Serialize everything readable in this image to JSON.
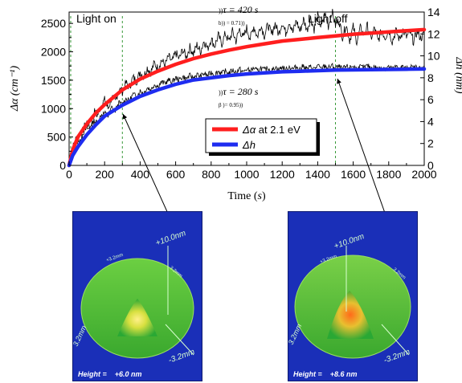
{
  "chart_data": {
    "type": "line",
    "xlabel_main": "Time",
    "xlabel_unit": "s",
    "ylabel_left": "Δα (cm⁻¹)",
    "ylabel_right": "Δh (nm)",
    "xlim": [
      0,
      2000
    ],
    "ylim_left": [
      0,
      2700
    ],
    "ylim_right": [
      0,
      14
    ],
    "x_ticks": [
      0,
      200,
      400,
      600,
      800,
      1000,
      1200,
      1400,
      1600,
      1800,
      2000
    ],
    "y_ticks_left": [
      0,
      500,
      1000,
      1500,
      2000,
      2500
    ],
    "y_ticks_right": [
      0,
      2,
      4,
      6,
      8,
      10,
      12,
      14
    ],
    "light_on_time": 0,
    "light_off_time": 1500,
    "mark_time": 300,
    "series": [
      {
        "name": "Δα at 2.1 eV",
        "axis": "left",
        "color": "#ff1e1e",
        "tau": 420,
        "beta": 0.71,
        "amplitude": 2600,
        "x": [
          0,
          20,
          50,
          100,
          150,
          200,
          300,
          400,
          500,
          600,
          700,
          800,
          900,
          1000,
          1100,
          1200,
          1300,
          1400,
          1500,
          1600,
          1700,
          1800,
          1900,
          2000
        ],
        "values": [
          0,
          270,
          500,
          730,
          920,
          1070,
          1330,
          1520,
          1660,
          1780,
          1880,
          1960,
          2030,
          2090,
          2140,
          2190,
          2220,
          2250,
          2280,
          2310,
          2330,
          2350,
          2370,
          2390
        ]
      },
      {
        "name": "Δh",
        "axis": "right",
        "color": "#1e2cf0",
        "tau": 280,
        "beta": 0.95,
        "amplitude": 8.8,
        "x": [
          0,
          20,
          50,
          100,
          150,
          200,
          300,
          400,
          500,
          600,
          700,
          800,
          900,
          1000,
          1100,
          1200,
          1300,
          1400,
          1500,
          1600,
          1700,
          1800,
          1900,
          2000
        ],
        "values": [
          0,
          0.9,
          1.7,
          2.8,
          3.7,
          4.5,
          5.5,
          6.3,
          6.9,
          7.4,
          7.8,
          8.0,
          8.2,
          8.35,
          8.45,
          8.55,
          8.6,
          8.65,
          8.7,
          8.72,
          8.74,
          8.76,
          8.78,
          8.8
        ]
      }
    ],
    "noisy_data": {
      "description_color": "#000000",
      "left_trace": [
        [
          0,
          60
        ],
        [
          20,
          300
        ],
        [
          40,
          480
        ],
        [
          60,
          420
        ],
        [
          80,
          640
        ],
        [
          100,
          760
        ],
        [
          120,
          680
        ],
        [
          140,
          950
        ],
        [
          160,
          880
        ],
        [
          180,
          1060
        ],
        [
          200,
          1150
        ],
        [
          220,
          1000
        ],
        [
          240,
          1200
        ],
        [
          260,
          1120
        ],
        [
          280,
          1350
        ],
        [
          300,
          1300
        ],
        [
          320,
          1450
        ],
        [
          340,
          1380
        ],
        [
          360,
          1550
        ],
        [
          380,
          1480
        ],
        [
          400,
          1650
        ],
        [
          420,
          1560
        ],
        [
          440,
          1720
        ],
        [
          460,
          1640
        ],
        [
          480,
          1800
        ],
        [
          500,
          1700
        ],
        [
          520,
          1860
        ],
        [
          540,
          1760
        ],
        [
          560,
          1920
        ],
        [
          580,
          1820
        ],
        [
          600,
          1990
        ],
        [
          620,
          1870
        ],
        [
          640,
          2040
        ],
        [
          660,
          1910
        ],
        [
          680,
          2080
        ],
        [
          700,
          1960
        ],
        [
          720,
          2120
        ],
        [
          740,
          2000
        ],
        [
          760,
          2200
        ],
        [
          780,
          2050
        ],
        [
          800,
          2230
        ],
        [
          820,
          2100
        ],
        [
          840,
          2290
        ],
        [
          860,
          2140
        ],
        [
          880,
          2320
        ],
        [
          900,
          2180
        ],
        [
          920,
          2360
        ],
        [
          940,
          2190
        ],
        [
          960,
          2400
        ],
        [
          980,
          2240
        ],
        [
          1000,
          2420
        ],
        [
          1020,
          2230
        ],
        [
          1040,
          2450
        ],
        [
          1060,
          2260
        ],
        [
          1080,
          2470
        ],
        [
          1100,
          2280
        ],
        [
          1120,
          2480
        ],
        [
          1140,
          2300
        ],
        [
          1160,
          2500
        ],
        [
          1180,
          2310
        ],
        [
          1200,
          2520
        ],
        [
          1220,
          2330
        ],
        [
          1240,
          2540
        ],
        [
          1260,
          2340
        ],
        [
          1280,
          2550
        ],
        [
          1300,
          2360
        ],
        [
          1320,
          2570
        ],
        [
          1340,
          2380
        ],
        [
          1360,
          2600
        ],
        [
          1380,
          2400
        ],
        [
          1400,
          2640
        ],
        [
          1420,
          2420
        ],
        [
          1440,
          2680
        ],
        [
          1460,
          2450
        ],
        [
          1480,
          2720
        ],
        [
          1500,
          2470
        ],
        [
          1520,
          2560
        ],
        [
          1540,
          2260
        ],
        [
          1560,
          2480
        ],
        [
          1580,
          2200
        ],
        [
          1600,
          2440
        ],
        [
          1620,
          2180
        ],
        [
          1640,
          2420
        ],
        [
          1660,
          2300
        ],
        [
          1680,
          2460
        ],
        [
          1700,
          2230
        ],
        [
          1720,
          2420
        ],
        [
          1740,
          2190
        ],
        [
          1760,
          2380
        ],
        [
          1780,
          2250
        ],
        [
          1800,
          2400
        ],
        [
          1820,
          2180
        ],
        [
          1840,
          2370
        ],
        [
          1860,
          2220
        ],
        [
          1880,
          2380
        ],
        [
          1900,
          2260
        ],
        [
          1920,
          2340
        ],
        [
          1940,
          2180
        ],
        [
          1960,
          2360
        ],
        [
          1980,
          2240
        ],
        [
          2000,
          2320
        ]
      ],
      "right_trace": [
        [
          0,
          0.3
        ],
        [
          20,
          1.4
        ],
        [
          40,
          2.1
        ],
        [
          60,
          2.0
        ],
        [
          80,
          3.0
        ],
        [
          100,
          3.4
        ],
        [
          120,
          3.3
        ],
        [
          140,
          4.1
        ],
        [
          160,
          3.9
        ],
        [
          180,
          4.6
        ],
        [
          200,
          4.8
        ],
        [
          220,
          4.5
        ],
        [
          240,
          5.3
        ],
        [
          260,
          5.0
        ],
        [
          280,
          5.7
        ],
        [
          300,
          5.6
        ],
        [
          320,
          6.1
        ],
        [
          340,
          5.9
        ],
        [
          360,
          6.5
        ],
        [
          380,
          6.3
        ],
        [
          400,
          6.8
        ],
        [
          420,
          6.6
        ],
        [
          440,
          7.1
        ],
        [
          460,
          6.9
        ],
        [
          480,
          7.4
        ],
        [
          500,
          7.2
        ],
        [
          520,
          7.6
        ],
        [
          540,
          7.5
        ],
        [
          560,
          7.8
        ],
        [
          580,
          7.6
        ],
        [
          600,
          8.0
        ],
        [
          620,
          7.8
        ],
        [
          640,
          8.1
        ],
        [
          660,
          7.9
        ],
        [
          680,
          8.2
        ],
        [
          700,
          8.0
        ],
        [
          720,
          8.3
        ],
        [
          740,
          8.1
        ],
        [
          760,
          8.4
        ],
        [
          780,
          8.2
        ],
        [
          800,
          8.5
        ],
        [
          820,
          8.3
        ],
        [
          840,
          8.6
        ],
        [
          860,
          8.4
        ],
        [
          880,
          8.6
        ],
        [
          900,
          8.4
        ],
        [
          920,
          8.7
        ],
        [
          940,
          8.5
        ],
        [
          960,
          8.8
        ],
        [
          980,
          8.5
        ],
        [
          1000,
          8.8
        ],
        [
          1020,
          8.6
        ],
        [
          1040,
          8.9
        ],
        [
          1060,
          8.6
        ],
        [
          1080,
          8.9
        ],
        [
          1100,
          8.7
        ],
        [
          1120,
          8.9
        ],
        [
          1140,
          8.6
        ],
        [
          1160,
          9.0
        ],
        [
          1180,
          8.7
        ],
        [
          1200,
          9.0
        ],
        [
          1220,
          8.7
        ],
        [
          1240,
          9.0
        ],
        [
          1260,
          8.8
        ],
        [
          1280,
          9.0
        ],
        [
          1300,
          8.8
        ],
        [
          1320,
          9.1
        ],
        [
          1340,
          8.8
        ],
        [
          1360,
          9.0
        ],
        [
          1380,
          8.8
        ],
        [
          1400,
          9.1
        ],
        [
          1420,
          8.8
        ],
        [
          1440,
          9.1
        ],
        [
          1460,
          8.9
        ],
        [
          1480,
          9.1
        ],
        [
          1500,
          8.9
        ],
        [
          1520,
          9.0
        ],
        [
          1540,
          8.8
        ],
        [
          1560,
          9.0
        ],
        [
          1580,
          8.9
        ],
        [
          1600,
          9.1
        ],
        [
          1620,
          8.8
        ],
        [
          1640,
          9.0
        ],
        [
          1660,
          8.9
        ],
        [
          1680,
          9.1
        ],
        [
          1700,
          8.9
        ],
        [
          1720,
          9.0
        ],
        [
          1740,
          8.8
        ],
        [
          1760,
          9.0
        ],
        [
          1780,
          8.9
        ],
        [
          1800,
          9.0
        ],
        [
          1820,
          8.8
        ],
        [
          1840,
          9.0
        ],
        [
          1860,
          8.9
        ],
        [
          1880,
          9.0
        ],
        [
          1900,
          8.8
        ],
        [
          1920,
          9.0
        ],
        [
          1940,
          8.9
        ],
        [
          1960,
          9.0
        ],
        [
          1980,
          8.8
        ],
        [
          2000,
          8.9
        ]
      ]
    },
    "annotations": {
      "light_on": "Light on",
      "light_off": "Light off",
      "tau_red": "τ = 420 s",
      "beta_red": "b)) = 0.71))",
      "tau_blue": "τ = 280 s",
      "beta_blue": "β )= 0.95))",
      "tau_prefix": "))"
    },
    "legend": [
      {
        "label_greek": "Δα",
        "label_rest": " at 2.1 eV",
        "color": "#ff1e1e"
      },
      {
        "label_greek": "Δh",
        "label_rest": "",
        "color": "#1e2cf0"
      }
    ]
  },
  "insets": [
    {
      "height_label": "Height =    +6.0 nm",
      "height_value_nm": 6.0,
      "top_label": "+10.0nm",
      "side_label_top": "+3.2mm",
      "side_label_right": "-3.2mm",
      "side_label_left": "3.2mm",
      "side_label_top_right": "3.2mm"
    },
    {
      "height_label": "Height =    +8.6 nm",
      "height_value_nm": 8.6,
      "top_label": "+10.0nm",
      "side_label_top": "+3.2mm",
      "side_label_right": "-3.2mm",
      "side_label_left": "3.2mm",
      "side_label_top_right": "3.2mm"
    }
  ]
}
